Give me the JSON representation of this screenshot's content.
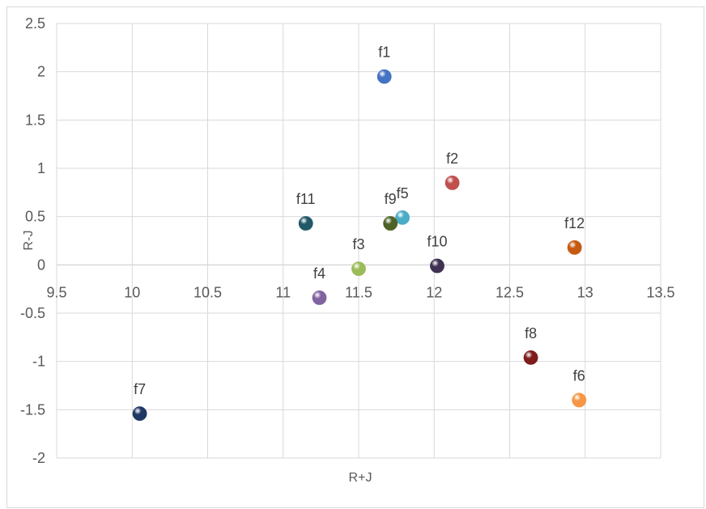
{
  "chart_data": {
    "type": "scatter",
    "xlabel": "R+J",
    "ylabel": "R-J",
    "xlim": [
      9.5,
      13.5
    ],
    "ylim": [
      -2,
      2.5
    ],
    "x_ticks": [
      "9.5",
      "10",
      "10.5",
      "11",
      "11.5",
      "12",
      "12.5",
      "13",
      "13.5"
    ],
    "y_ticks": [
      "2.5",
      "2",
      "1.5",
      "1",
      "0.5",
      "0",
      "-0.5",
      "-1",
      "-1.5",
      "-2"
    ],
    "grid": true,
    "legend": "none",
    "points": [
      {
        "label": "f1",
        "x": 11.67,
        "y": 1.95,
        "color": "#4472c4"
      },
      {
        "label": "f2",
        "x": 12.12,
        "y": 0.85,
        "color": "#c0504d"
      },
      {
        "label": "f3",
        "x": 11.5,
        "y": -0.04,
        "color": "#9bbb59"
      },
      {
        "label": "f4",
        "x": 11.24,
        "y": -0.34,
        "color": "#8064a2"
      },
      {
        "label": "f5",
        "x": 11.79,
        "y": 0.49,
        "color": "#4bacc6"
      },
      {
        "label": "f6",
        "x": 12.96,
        "y": -1.4,
        "color": "#f79646"
      },
      {
        "label": "f7",
        "x": 10.05,
        "y": -1.54,
        "color": "#1f3864"
      },
      {
        "label": "f8",
        "x": 12.64,
        "y": -0.96,
        "color": "#7f1d1d"
      },
      {
        "label": "f9",
        "x": 11.71,
        "y": 0.43,
        "color": "#4f6228"
      },
      {
        "label": "f10",
        "x": 12.02,
        "y": -0.01,
        "color": "#3f3151"
      },
      {
        "label": "f11",
        "x": 11.15,
        "y": 0.43,
        "color": "#215968"
      },
      {
        "label": "f12",
        "x": 12.93,
        "y": 0.18,
        "color": "#c55a11"
      }
    ]
  }
}
